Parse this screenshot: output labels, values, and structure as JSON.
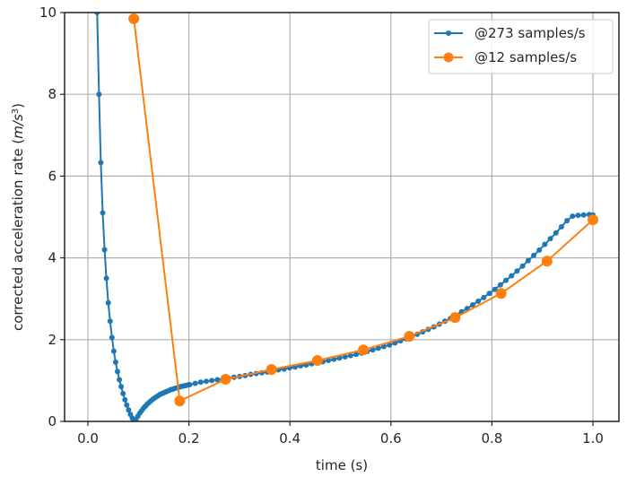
{
  "chart_data": {
    "type": "line",
    "title": "",
    "xlabel": "time (s)",
    "ylabel": "corrected acceleration rate (m/s^3)",
    "xlim": [
      -0.04,
      1.05
    ],
    "ylim": [
      0,
      10
    ],
    "x_ticks": [
      0.0,
      0.2,
      0.4,
      0.6,
      0.8,
      1.0
    ],
    "x_tick_labels": [
      "0.0",
      "0.2",
      "0.4",
      "0.6",
      "0.8",
      "1.0"
    ],
    "y_ticks": [
      0,
      2,
      4,
      6,
      8,
      10
    ],
    "y_tick_labels": [
      "0",
      "2",
      "4",
      "6",
      "8",
      "10"
    ],
    "grid": true,
    "legend_position": "upper right",
    "series": [
      {
        "name": "@273 samples/s",
        "color": "#1f77b4",
        "marker": "small-dot",
        "x": [
          0.0147,
          0.0183,
          0.022,
          0.0256,
          0.0293,
          0.033,
          0.0366,
          0.0403,
          0.044,
          0.0476,
          0.0513,
          0.0549,
          0.0586,
          0.0623,
          0.0659,
          0.0696,
          0.0733,
          0.0769,
          0.0806,
          0.0842,
          0.0879,
          0.0916,
          0.0952,
          0.0989,
          0.1026,
          0.1062,
          0.1099,
          0.1136,
          0.1172,
          0.1209,
          0.1245,
          0.1282,
          0.1319,
          0.1355,
          0.1392,
          0.1429,
          0.1465,
          0.1502,
          0.1538,
          0.1575,
          0.1612,
          0.1648,
          0.1685,
          0.1722,
          0.1758,
          0.1795,
          0.1832,
          0.1868,
          0.1905,
          0.1941,
          0.1978,
          0.2015,
          0.2125,
          0.2234,
          0.2344,
          0.2454,
          0.2564,
          0.2674,
          0.2784,
          0.2894,
          0.3004,
          0.3114,
          0.3223,
          0.3333,
          0.3443,
          0.3553,
          0.3663,
          0.3773,
          0.3883,
          0.3993,
          0.4103,
          0.4212,
          0.4322,
          0.4432,
          0.4542,
          0.4652,
          0.4762,
          0.4872,
          0.4982,
          0.5092,
          0.5201,
          0.5311,
          0.5421,
          0.5531,
          0.5641,
          0.5751,
          0.5861,
          0.5971,
          0.6081,
          0.619,
          0.63,
          0.641,
          0.652,
          0.663,
          0.674,
          0.685,
          0.696,
          0.707,
          0.7179,
          0.7289,
          0.7399,
          0.7509,
          0.7619,
          0.7729,
          0.7839,
          0.7949,
          0.8059,
          0.8168,
          0.8278,
          0.8388,
          0.8498,
          0.8608,
          0.8718,
          0.8828,
          0.8938,
          0.9048,
          0.9158,
          0.9267,
          0.9377,
          0.9487,
          0.9597,
          0.9707,
          0.9817,
          0.9927,
          1.0
        ],
        "y": [
          12.5,
          10.0,
          8.0,
          6.33,
          5.1,
          4.2,
          3.5,
          2.9,
          2.45,
          2.05,
          1.72,
          1.45,
          1.22,
          1.02,
          0.85,
          0.68,
          0.53,
          0.4,
          0.28,
          0.17,
          0.08,
          0.02,
          0.05,
          0.13,
          0.2,
          0.26,
          0.32,
          0.37,
          0.42,
          0.46,
          0.5,
          0.54,
          0.57,
          0.6,
          0.63,
          0.66,
          0.68,
          0.7,
          0.72,
          0.74,
          0.76,
          0.78,
          0.79,
          0.81,
          0.82,
          0.83,
          0.85,
          0.86,
          0.87,
          0.88,
          0.89,
          0.9,
          0.93,
          0.96,
          0.98,
          1.0,
          1.02,
          1.04,
          1.06,
          1.08,
          1.1,
          1.12,
          1.15,
          1.17,
          1.19,
          1.21,
          1.24,
          1.26,
          1.28,
          1.31,
          1.33,
          1.36,
          1.38,
          1.41,
          1.43,
          1.46,
          1.49,
          1.52,
          1.55,
          1.58,
          1.61,
          1.64,
          1.67,
          1.71,
          1.75,
          1.79,
          1.83,
          1.87,
          1.92,
          1.97,
          2.02,
          2.07,
          2.13,
          2.19,
          2.25,
          2.31,
          2.38,
          2.45,
          2.52,
          2.6,
          2.68,
          2.76,
          2.85,
          2.94,
          3.03,
          3.13,
          3.23,
          3.34,
          3.45,
          3.56,
          3.68,
          3.8,
          3.93,
          4.06,
          4.19,
          4.33,
          4.47,
          4.61,
          4.76,
          4.91,
          5.02,
          5.04,
          5.05,
          5.06,
          5.05
        ]
      },
      {
        "name": "@12 samples/s",
        "color": "#ff7f0e",
        "marker": "large-dot",
        "x": [
          0.0909,
          0.1818,
          0.2727,
          0.3636,
          0.4545,
          0.5455,
          0.6364,
          0.7273,
          0.8182,
          0.9091,
          1.0
        ],
        "y": [
          9.85,
          0.5,
          1.03,
          1.27,
          1.49,
          1.75,
          2.08,
          2.54,
          3.13,
          3.92,
          4.93
        ]
      }
    ]
  },
  "legend": {
    "items": [
      {
        "label": "@273 samples/s",
        "color": "#1f77b4"
      },
      {
        "label": "@12 samples/s",
        "color": "#ff7f0e"
      }
    ]
  },
  "axes": {
    "xlabel": "time (s)",
    "ylabel_main": "corrected acceleration rate (",
    "ylabel_unit": "m/s",
    "ylabel_exp": "3",
    "ylabel_close": ")"
  }
}
